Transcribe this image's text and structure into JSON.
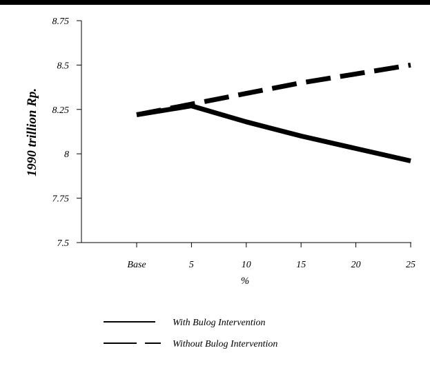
{
  "chart_data": {
    "type": "line",
    "categories": [
      "Base",
      "5",
      "10",
      "15",
      "20",
      "25"
    ],
    "series": [
      {
        "name": "With Bulog Intervention",
        "style": "solid",
        "values": [
          8.22,
          8.27,
          8.18,
          8.1,
          8.03,
          7.96
        ]
      },
      {
        "name": "Without Bulog Intervention",
        "style": "dashed",
        "values": [
          8.22,
          8.28,
          8.34,
          8.4,
          8.45,
          8.5
        ]
      }
    ],
    "xlabel": "%",
    "ylabel": "1990 trillion Rp.",
    "ylim": [
      7.5,
      8.75
    ],
    "yticks": [
      "7.5",
      "7.75",
      "8",
      "8.25",
      "8.5",
      "8.75"
    ],
    "grid": false,
    "legend_position": "bottom",
    "line_color": "#000000"
  }
}
